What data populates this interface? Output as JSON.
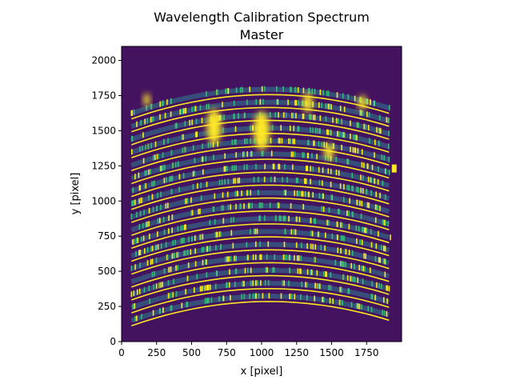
{
  "chart_data": {
    "type": "heatmap",
    "title": "Wavelength Calibration Spectrum",
    "subtitle": "Master",
    "xlabel": "x [pixel]",
    "ylabel": "y [pixel]",
    "xlim": [
      0,
      2000
    ],
    "ylim": [
      0,
      2100
    ],
    "xticks": [
      0,
      250,
      500,
      750,
      1000,
      1250,
      1500,
      1750
    ],
    "yticks": [
      0,
      250,
      500,
      750,
      1000,
      1250,
      1500,
      1750,
      2000
    ],
    "grid": false,
    "colormap": "viridis",
    "colors": {
      "background": "#44135f",
      "trace": "#2b7f8e",
      "bright": "#fde725",
      "mid": "#35b779"
    }
  }
}
